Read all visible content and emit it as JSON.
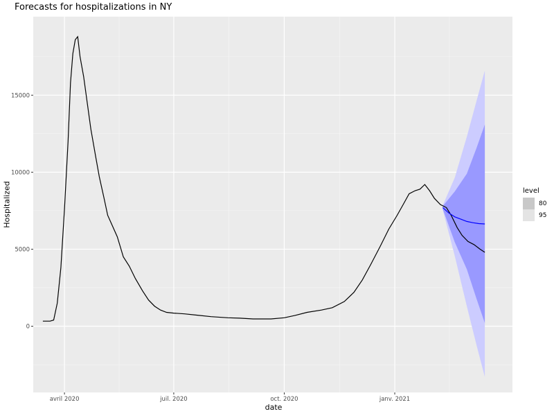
{
  "chart_data": {
    "type": "line",
    "title": "Forecasts for hospitalizations in NY",
    "xlabel": "date",
    "ylabel": "Hospitalized",
    "x_axis": {
      "type": "date",
      "range": [
        "2020-03-06",
        "2021-04-09"
      ],
      "ticks": [
        {
          "date": "2020-04-01",
          "label": "avril 2020"
        },
        {
          "date": "2020-07-01",
          "label": "juil. 2020"
        },
        {
          "date": "2020-10-01",
          "label": "oct. 2020"
        },
        {
          "date": "2021-01-01",
          "label": "janv. 2021"
        }
      ]
    },
    "y_axis": {
      "range": [
        -4300,
        20100
      ],
      "ticks": [
        0,
        5000,
        10000,
        15000
      ],
      "tick_labels": [
        "0",
        "5000",
        "10000",
        "15000"
      ]
    },
    "grid": true,
    "series": [
      {
        "color": "#000000",
        "points": [
          [
            "2020-03-14",
            330
          ],
          [
            "2020-03-20",
            330
          ],
          [
            "2020-03-23",
            400
          ],
          [
            "2020-03-26",
            1500
          ],
          [
            "2020-03-29",
            3800
          ],
          [
            "2020-04-01",
            7600
          ],
          [
            "2020-04-04",
            12000
          ],
          [
            "2020-04-06",
            15800
          ],
          [
            "2020-04-08",
            17700
          ],
          [
            "2020-04-10",
            18600
          ],
          [
            "2020-04-12",
            18800
          ],
          [
            "2020-04-14",
            17500
          ],
          [
            "2020-04-17",
            16200
          ],
          [
            "2020-04-20",
            14500
          ],
          [
            "2020-04-23",
            12800
          ],
          [
            "2020-04-27",
            11000
          ],
          [
            "2020-04-30",
            9700
          ],
          [
            "2020-05-04",
            8300
          ],
          [
            "2020-05-07",
            7200
          ],
          [
            "2020-05-11",
            6500
          ],
          [
            "2020-05-15",
            5800
          ],
          [
            "2020-05-20",
            4500
          ],
          [
            "2020-05-25",
            3900
          ],
          [
            "2020-05-30",
            3100
          ],
          [
            "2020-06-05",
            2300
          ],
          [
            "2020-06-10",
            1700
          ],
          [
            "2020-06-15",
            1300
          ],
          [
            "2020-06-20",
            1050
          ],
          [
            "2020-06-25",
            900
          ],
          [
            "2020-07-01",
            850
          ],
          [
            "2020-07-10",
            800
          ],
          [
            "2020-07-20",
            720
          ],
          [
            "2020-08-01",
            620
          ],
          [
            "2020-08-15",
            550
          ],
          [
            "2020-08-25",
            520
          ],
          [
            "2020-09-05",
            470
          ],
          [
            "2020-09-20",
            470
          ],
          [
            "2020-10-01",
            550
          ],
          [
            "2020-10-10",
            700
          ],
          [
            "2020-10-20",
            900
          ],
          [
            "2020-11-01",
            1050
          ],
          [
            "2020-11-10",
            1200
          ],
          [
            "2020-11-20",
            1600
          ],
          [
            "2020-11-28",
            2200
          ],
          [
            "2020-12-05",
            3000
          ],
          [
            "2020-12-12",
            4000
          ],
          [
            "2020-12-20",
            5200
          ],
          [
            "2020-12-27",
            6300
          ],
          [
            "2021-01-03",
            7200
          ],
          [
            "2021-01-08",
            7900
          ],
          [
            "2021-01-13",
            8600
          ],
          [
            "2021-01-18",
            8800
          ],
          [
            "2021-01-22",
            8900
          ],
          [
            "2021-01-26",
            9200
          ],
          [
            "2021-01-30",
            8800
          ],
          [
            "2021-02-03",
            8300
          ],
          [
            "2021-02-08",
            7900
          ],
          [
            "2021-02-13",
            7700
          ],
          [
            "2021-02-17",
            7200
          ],
          [
            "2021-02-22",
            6400
          ],
          [
            "2021-02-26",
            5900
          ],
          [
            "2021-03-03",
            5500
          ],
          [
            "2021-03-08",
            5300
          ],
          [
            "2021-03-13",
            5000
          ],
          [
            "2021-03-17",
            4800
          ]
        ]
      },
      {
        "color": "#0000ff",
        "type": "forecast",
        "points": [
          [
            "2021-02-10",
            7700
          ],
          [
            "2021-02-15",
            7350
          ],
          [
            "2021-02-20",
            7100
          ],
          [
            "2021-02-25",
            6950
          ],
          [
            "2021-03-02",
            6800
          ],
          [
            "2021-03-07",
            6720
          ],
          [
            "2021-03-12",
            6660
          ],
          [
            "2021-03-17",
            6640
          ]
        ]
      }
    ],
    "forecast_intervals": {
      "x": [
        "2021-02-10",
        "2021-02-20",
        "2021-03-02",
        "2021-03-10",
        "2021-03-17"
      ],
      "mean": [
        7700,
        7100,
        6800,
        6680,
        6640
      ],
      "lower80": [
        7600,
        5450,
        3700,
        1800,
        200
      ],
      "upper80": [
        7800,
        8750,
        9900,
        11550,
        13100
      ],
      "lower95": [
        7550,
        4550,
        1300,
        -1200,
        -3300
      ],
      "upper95": [
        7850,
        9650,
        12300,
        14600,
        16600
      ],
      "colors": {
        "band80": "#9999ff",
        "band95": "#ccccff"
      }
    },
    "legend": {
      "title": "level",
      "placement": "right",
      "entries": [
        {
          "label": "80",
          "color": "#c8c8c8"
        },
        {
          "label": "95",
          "color": "#e4e4e4"
        }
      ]
    }
  }
}
